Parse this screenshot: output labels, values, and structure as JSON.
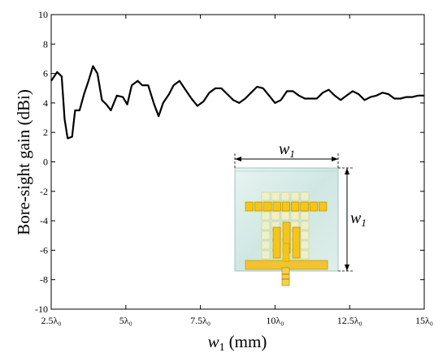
{
  "chart_data": {
    "type": "line",
    "xlabel_var": "w",
    "xlabel_sub": "1",
    "xlabel_unit": "(mm)",
    "ylabel": "Bore-sight gain (dBi)",
    "xlim": [
      2.5,
      15
    ],
    "ylim": [
      -10,
      10
    ],
    "y_ticks": [
      10,
      8,
      6,
      4,
      2,
      0,
      -2,
      -4,
      -6,
      -8,
      -10
    ],
    "x_ticks": [
      {
        "value": 2.5,
        "label": "2.5λ₀"
      },
      {
        "value": 5,
        "label": "5λ₀"
      },
      {
        "value": 7.5,
        "label": "7.5λ₀"
      },
      {
        "value": 10,
        "label": "10λ₀"
      },
      {
        "value": 12.5,
        "label": "12.5λ₀"
      },
      {
        "value": 15,
        "label": "15λ₀"
      }
    ],
    "grid": false,
    "series": [
      {
        "color": "#000000",
        "x": [
          2.5,
          2.7,
          2.85,
          2.95,
          3.05,
          3.2,
          3.3,
          3.45,
          3.6,
          3.75,
          3.9,
          4.05,
          4.2,
          4.35,
          4.5,
          4.7,
          4.9,
          5.05,
          5.2,
          5.4,
          5.55,
          5.75,
          5.95,
          6.1,
          6.25,
          6.45,
          6.6,
          6.8,
          7.0,
          7.2,
          7.4,
          7.6,
          7.8,
          8.0,
          8.2,
          8.4,
          8.6,
          8.8,
          9.0,
          9.2,
          9.4,
          9.6,
          9.8,
          10.0,
          10.2,
          10.4,
          10.6,
          10.8,
          11.0,
          11.2,
          11.4,
          11.6,
          11.8,
          12.0,
          12.2,
          12.4,
          12.6,
          12.8,
          13.0,
          13.2,
          13.4,
          13.6,
          13.8,
          14.0,
          14.2,
          14.4,
          14.6,
          14.8,
          15.0
        ],
        "y": [
          5.5,
          6.1,
          5.8,
          2.9,
          1.6,
          1.7,
          3.5,
          3.5,
          4.6,
          5.5,
          6.5,
          6.0,
          4.2,
          3.9,
          3.5,
          4.5,
          4.4,
          3.9,
          5.2,
          5.5,
          5.2,
          5.2,
          3.9,
          3.1,
          4.0,
          4.6,
          5.2,
          5.5,
          4.9,
          4.3,
          3.8,
          4.1,
          4.7,
          5.0,
          5.0,
          4.6,
          4.2,
          4.0,
          4.3,
          4.7,
          5.1,
          5.0,
          4.5,
          4.0,
          4.2,
          4.8,
          4.8,
          4.5,
          4.3,
          4.3,
          4.3,
          4.7,
          4.9,
          4.5,
          4.2,
          4.5,
          4.8,
          4.6,
          4.2,
          4.4,
          4.5,
          4.7,
          4.6,
          4.3,
          4.3,
          4.4,
          4.4,
          4.5,
          4.5
        ]
      }
    ]
  },
  "inset": {
    "width_label": "w",
    "width_sub": "1",
    "height_label": "w",
    "height_sub": "1"
  }
}
